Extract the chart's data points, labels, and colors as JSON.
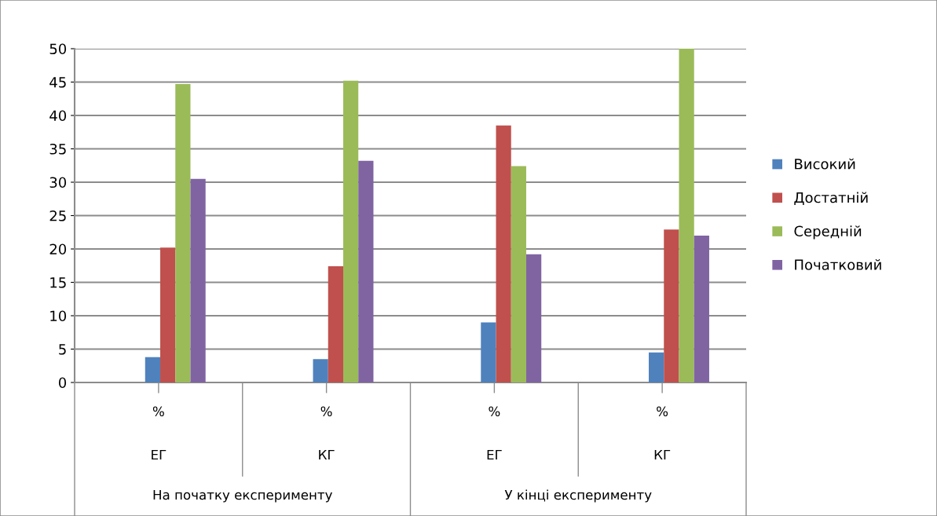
{
  "chart_data": {
    "type": "bar",
    "categories": [
      "%",
      "%",
      "%",
      "%"
    ],
    "series": [
      {
        "name": "Високий",
        "color": "#4f81bd",
        "values": [
          3.8,
          3.5,
          9,
          4.5
        ]
      },
      {
        "name": "Достатній",
        "color": "#c0504d",
        "values": [
          20.2,
          17.4,
          38.5,
          22.9
        ]
      },
      {
        "name": "Середній",
        "color": "#9bbb59",
        "values": [
          44.7,
          45.2,
          32.4,
          50
        ]
      },
      {
        "name": "Початковий",
        "color": "#8064a2",
        "values": [
          30.5,
          33.2,
          19.2,
          22
        ]
      }
    ],
    "annotations": [
      "ЕГ",
      "КГ",
      "ЕГ",
      "КГ",
      "На початку експерименту",
      "У кінці експерименту"
    ],
    "ylim": [
      0,
      50
    ],
    "yticks": [
      0,
      5,
      10,
      15,
      20,
      25,
      30,
      35,
      40,
      45,
      50
    ],
    "grid": "y",
    "legend": "right"
  }
}
